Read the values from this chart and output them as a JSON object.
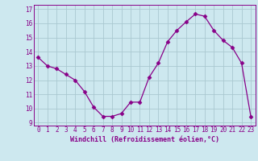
{
  "x": [
    0,
    1,
    2,
    3,
    4,
    5,
    6,
    7,
    8,
    9,
    10,
    11,
    12,
    13,
    14,
    15,
    16,
    17,
    18,
    19,
    20,
    21,
    22,
    23
  ],
  "y": [
    13.6,
    13.0,
    12.8,
    12.4,
    12.0,
    11.2,
    10.1,
    9.45,
    9.45,
    9.65,
    10.45,
    10.45,
    12.2,
    13.2,
    14.7,
    15.5,
    16.1,
    16.65,
    16.5,
    15.5,
    14.8,
    14.3,
    13.2,
    9.45
  ],
  "line_color": "#880088",
  "marker": "D",
  "marker_size": 2.5,
  "xlabel": "Windchill (Refroidissement éolien,°C)",
  "ylabel_ticks": [
    9,
    10,
    11,
    12,
    13,
    14,
    15,
    16,
    17
  ],
  "ylim": [
    8.8,
    17.3
  ],
  "xlim": [
    -0.5,
    23.5
  ],
  "bg_color": "#cde8ef",
  "grid_color": "#aac8d0",
  "tick_fontsize": 5.5,
  "xlabel_fontsize": 6.0
}
